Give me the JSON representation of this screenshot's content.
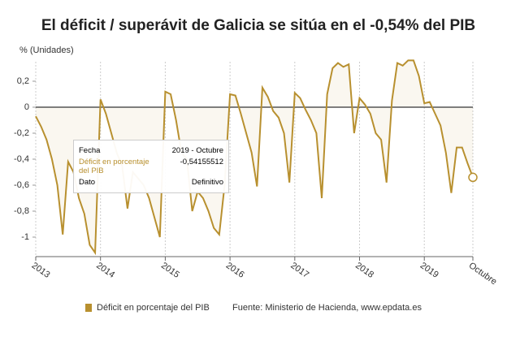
{
  "chart_data": {
    "type": "line",
    "title": "El déficit / superávit de Galicia se sitúa en el -0,54% del PIB",
    "y_label": "% (Unidades)",
    "categories": [
      "2013",
      null,
      null,
      null,
      null,
      null,
      null,
      null,
      null,
      null,
      null,
      null,
      "2014",
      null,
      null,
      null,
      null,
      null,
      null,
      null,
      null,
      null,
      null,
      null,
      "2015",
      null,
      null,
      null,
      null,
      null,
      null,
      null,
      null,
      null,
      null,
      null,
      "2016",
      null,
      null,
      null,
      null,
      null,
      null,
      null,
      null,
      null,
      null,
      null,
      "2017",
      null,
      null,
      null,
      null,
      null,
      null,
      null,
      null,
      null,
      null,
      null,
      "2018",
      null,
      null,
      null,
      null,
      null,
      null,
      null,
      null,
      null,
      null,
      null,
      "2019",
      null,
      null,
      null,
      null,
      null,
      null,
      null,
      null,
      "Octubre"
    ],
    "series": [
      {
        "name": "Déficit en porcentaje del PIB",
        "color": "#b8902f",
        "values": [
          -0.07,
          -0.15,
          -0.25,
          -0.4,
          -0.6,
          -0.98,
          -0.42,
          -0.5,
          -0.7,
          -0.82,
          -1.06,
          -1.12,
          0.06,
          -0.05,
          -0.2,
          -0.35,
          -0.45,
          -0.78,
          -0.5,
          -0.55,
          -0.6,
          -0.7,
          -0.85,
          -1.0,
          0.12,
          0.1,
          -0.1,
          -0.35,
          -0.4,
          -0.8,
          -0.65,
          -0.7,
          -0.8,
          -0.93,
          -0.98,
          -0.6,
          0.1,
          0.09,
          -0.05,
          -0.2,
          -0.35,
          -0.61,
          0.15,
          0.08,
          -0.03,
          -0.08,
          -0.2,
          -0.58,
          0.11,
          0.07,
          -0.02,
          -0.1,
          -0.2,
          -0.7,
          0.1,
          0.3,
          0.34,
          0.31,
          0.33,
          -0.2,
          0.07,
          0.02,
          -0.05,
          -0.2,
          -0.25,
          -0.58,
          0.05,
          0.34,
          0.32,
          0.36,
          0.36,
          0.24,
          0.03,
          0.04,
          -0.05,
          -0.14,
          -0.35,
          -0.66,
          -0.31,
          -0.31,
          -0.43,
          -0.54
        ]
      }
    ],
    "ylim": [
      -1.15,
      0.35
    ],
    "yticks": [
      {
        "value": 0.2,
        "label": "0,2"
      },
      0,
      {
        "value": -0.2,
        "label": "-0,2"
      },
      {
        "value": -0.4,
        "label": "-0,4"
      },
      {
        "value": -0.6,
        "label": "-0,6"
      },
      {
        "value": -0.8,
        "label": "-0,8"
      },
      -1
    ],
    "source": "Fuente: Ministerio de Hacienda, www.epdata.es",
    "tooltip": {
      "rows": [
        [
          "Fecha",
          "2019 - Octubre"
        ],
        [
          "Déficit en porcentaje del PIB",
          "-0,54155512"
        ],
        [
          "Dato",
          "Definitivo"
        ]
      ]
    }
  }
}
